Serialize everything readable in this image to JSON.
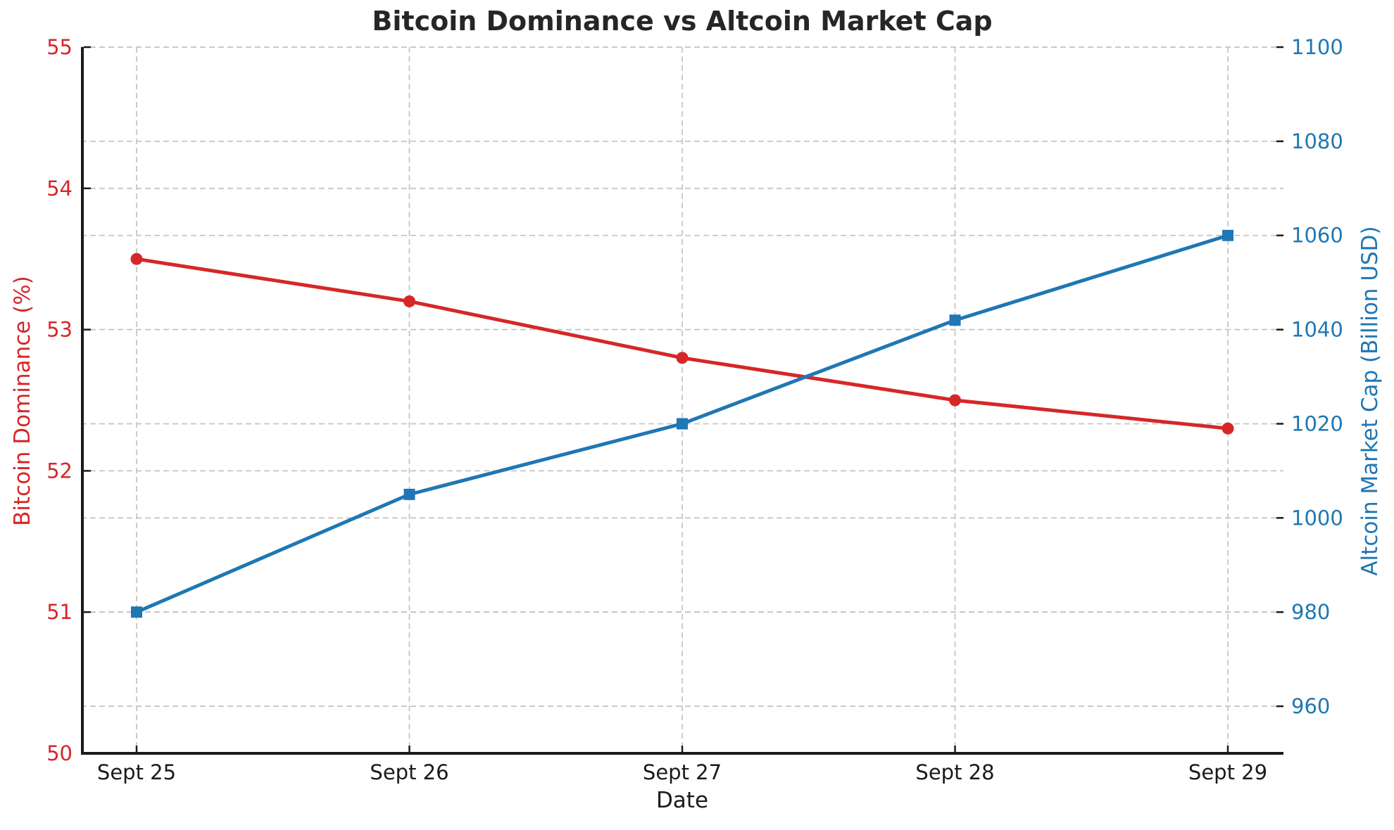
{
  "title": "Bitcoin Dominance vs Altcoin Market Cap",
  "chart_data": {
    "type": "line",
    "title": "Bitcoin Dominance vs Altcoin Market Cap",
    "xlabel": "Date",
    "x": [
      "Sept 25",
      "Sept 26",
      "Sept 27",
      "Sept 28",
      "Sept 29"
    ],
    "grid": true,
    "legend": "none",
    "left_axis": {
      "label": "Bitcoin Dominance (%)",
      "color": "#d62728",
      "range": [
        50,
        55
      ],
      "ticks": [
        50,
        51,
        52,
        53,
        54,
        55
      ]
    },
    "right_axis": {
      "label": "Altcoin Market Cap (Billion USD)",
      "color": "#1f77b4",
      "range": [
        950,
        1100
      ],
      "ticks": [
        960,
        980,
        1000,
        1020,
        1040,
        1060,
        1080,
        1100
      ]
    },
    "series": [
      {
        "name": "Bitcoin Dominance",
        "axis": "left",
        "color": "#d62728",
        "marker": "circle",
        "values": [
          53.5,
          53.2,
          52.8,
          52.5,
          52.3
        ]
      },
      {
        "name": "Altcoin Market Cap",
        "axis": "right",
        "color": "#1f77b4",
        "marker": "square",
        "values": [
          980,
          1005,
          1020,
          1042,
          1060
        ]
      }
    ]
  },
  "styles": {
    "grid_color": "#c6c6c6",
    "spine_color": "#1a1a1a",
    "tick_color": "#1a1a1a",
    "xtick_label_color": "#1a1a1a",
    "title_color": "#262626"
  }
}
